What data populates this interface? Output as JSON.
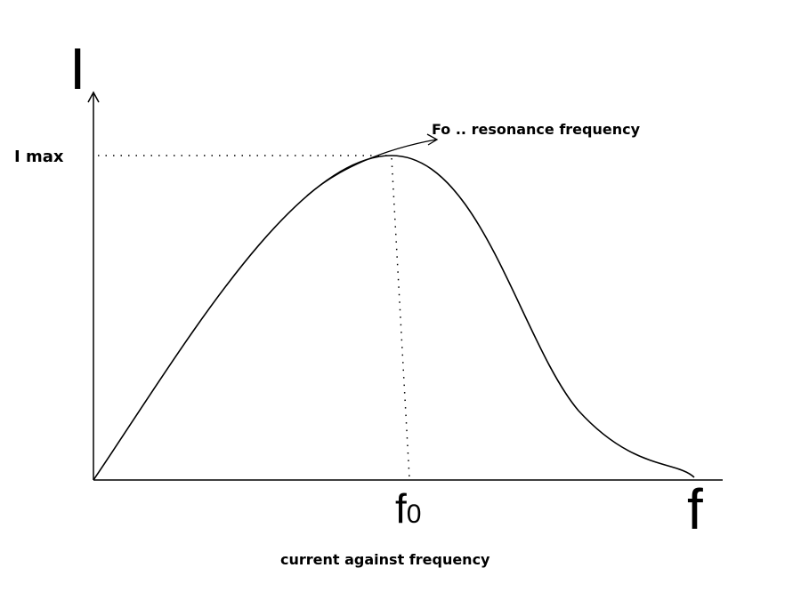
{
  "axes": {
    "y_label": "I",
    "x_label": "f"
  },
  "labels": {
    "i_max": "I max",
    "annotation": "Fo .. resonance frequency",
    "f0": {
      "base": "f",
      "subscript": "0"
    }
  },
  "caption": "current against frequency"
}
